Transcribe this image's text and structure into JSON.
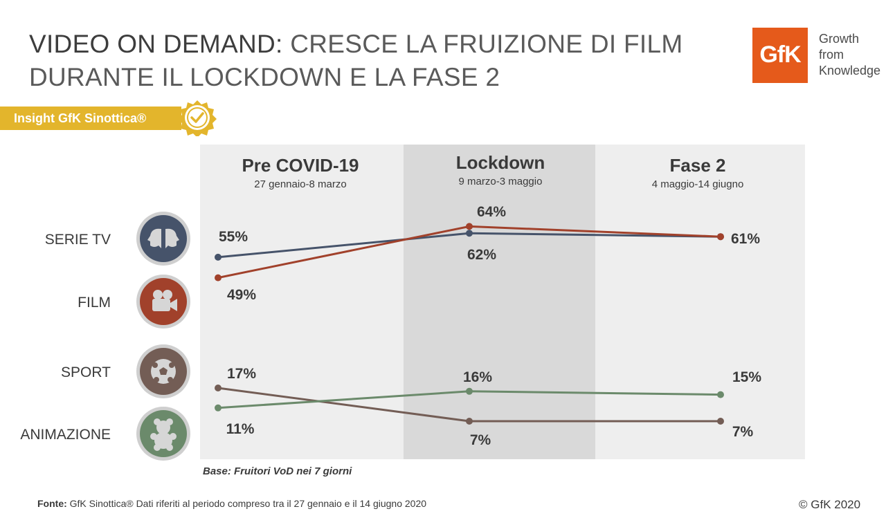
{
  "title": {
    "strong": "VIDEO ON DEMAND:",
    "rest": " CRESCE LA FRUIZIONE DI FILM",
    "line2": "DURANTE IL LOCKDOWN E LA FASE 2"
  },
  "logo": {
    "mark": "GfK",
    "tagline1": "Growth",
    "tagline2": "from",
    "tagline3": "Knowledge"
  },
  "badge": {
    "label": "Insight GfK Sinottica®"
  },
  "footer": {
    "label": "Fonte:",
    "text": " GfK Sinottica® Dati riferiti al periodo compreso tra il 27 gennaio e il 14 giugno 2020"
  },
  "copyright": "© GfK 2020",
  "colors": {
    "serie_tv": "#46536a",
    "film": "#a1412b",
    "sport": "#735d55",
    "animazione": "#6b8a6b",
    "panel": "#eeeeee",
    "panel_dark": "#d9d9d9",
    "badge": "#e3b52c",
    "logo": "#e55a1b"
  },
  "chart_data": {
    "type": "line",
    "categories": [
      {
        "name": "Pre COVID-19",
        "dates": "27 gennaio-8 marzo"
      },
      {
        "name": "Lockdown",
        "dates": "9 marzo-3 maggio"
      },
      {
        "name": "Fase 2",
        "dates": "4 maggio-14 giugno"
      }
    ],
    "series": [
      {
        "name": "SERIE TV",
        "values": [
          55,
          62,
          61
        ],
        "labels": [
          "55%",
          "62%",
          "61%"
        ],
        "icon": "faces-icon",
        "color_key": "serie_tv"
      },
      {
        "name": "FILM",
        "values": [
          49,
          64,
          61
        ],
        "labels": [
          "49%",
          "64%",
          ""
        ],
        "icon": "movie-camera-icon",
        "color_key": "film"
      },
      {
        "name": "SPORT",
        "values": [
          17,
          7,
          7
        ],
        "labels": [
          "17%",
          "7%",
          "7%"
        ],
        "icon": "soccer-ball-icon",
        "color_key": "sport"
      },
      {
        "name": "ANIMAZIONE",
        "values": [
          11,
          16,
          15
        ],
        "labels": [
          "11%",
          "16%",
          "15%"
        ],
        "icon": "teddy-bear-icon",
        "color_key": "animazione"
      }
    ],
    "base_note": "Base: Fruitori VoD nei 7 giorni",
    "grid": false,
    "legend": "left"
  }
}
